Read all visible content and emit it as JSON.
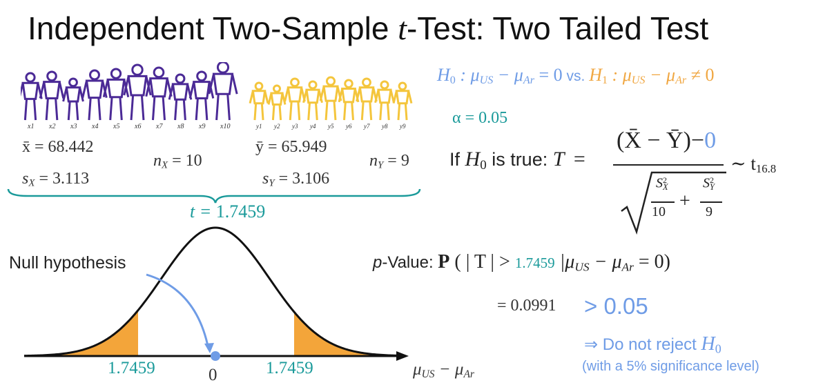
{
  "title_main": "Independent Two-Sample ",
  "title_t": "t",
  "title_rest": "-Test: Two Tailed Test",
  "figures": {
    "x_labels": [
      "x1",
      "x2",
      "x3",
      "x4",
      "x5",
      "x6",
      "x7",
      "x8",
      "x9",
      "x10"
    ],
    "y_labels": [
      "y1",
      "y2",
      "y3",
      "y4",
      "y5",
      "y6",
      "y7",
      "y8",
      "y9"
    ],
    "colors": {
      "us": "#4b2a96",
      "ar": "#f4c53c"
    }
  },
  "stats": {
    "xbar": "x̄ = 68.442",
    "sx": "s",
    "sx_sub": "X",
    "sx_val": " = 3.113",
    "nx": "n",
    "nx_sub": "X",
    "nx_val": " = 10",
    "ybar": "ȳ = 65.949",
    "sy": "s",
    "sy_sub": "Y",
    "sy_val": " = 3.106",
    "ny": "n",
    "ny_sub": "Y",
    "ny_val": " = 9",
    "t_label": "t = ",
    "t_value": "1.7459"
  },
  "hypotheses": {
    "h0": "H",
    "h0_sub": "0",
    "h0_rest": " : μ",
    "us": "US",
    "minus": " − μ",
    "ar": "Ar",
    "h0_end": " = 0",
    "vs": " vs. ",
    "h1": "H",
    "h1_sub": "1",
    "h1_rest": " : μ",
    "h1_end": " ≠ 0"
  },
  "alpha": "α = 0.05",
  "if_true": {
    "prefix": "If ",
    "h": "H",
    "h_sub": "0",
    "suffix": " is true: ",
    "T": "T",
    "eq": "=",
    "numer": "(X̄ − Ȳ)−",
    "numer_zero": "0",
    "denom_sx": "S",
    "denom_sx_sup": "2",
    "denom_sx_sub": "X",
    "denom_n1": "10",
    "plus": "+",
    "denom_sy": "S",
    "denom_sy_sup": "2",
    "denom_sy_sub": "Y",
    "denom_n2": "9",
    "dist": "∼ t",
    "df": "16.8"
  },
  "pvalue": {
    "label": "p",
    "label_rest": "-Value: ",
    "P": "P",
    "open": " ( | T | > ",
    "value": "1.7459",
    "cond": " |μ",
    "us": "US",
    "minus": " − μ",
    "ar": "Ar",
    "close": " = 0)",
    "equals": "= 0.0991",
    "gt": "> 0.05"
  },
  "conclusion": {
    "text": "⇒ Do not reject ",
    "h": "H",
    "h_sub": "0",
    "note": "(with a 5% significance level)"
  },
  "curve": {
    "null_label": "Null hypothesis",
    "left_tick": "1.7459",
    "center_tick": "0",
    "right_tick": "1.7459",
    "axis_label_mu": "μ",
    "axis_us": "US",
    "axis_minus": " − μ",
    "axis_ar": "Ar",
    "fill_color": "#f3a53a",
    "arrow_color": "#6f9ce6"
  }
}
